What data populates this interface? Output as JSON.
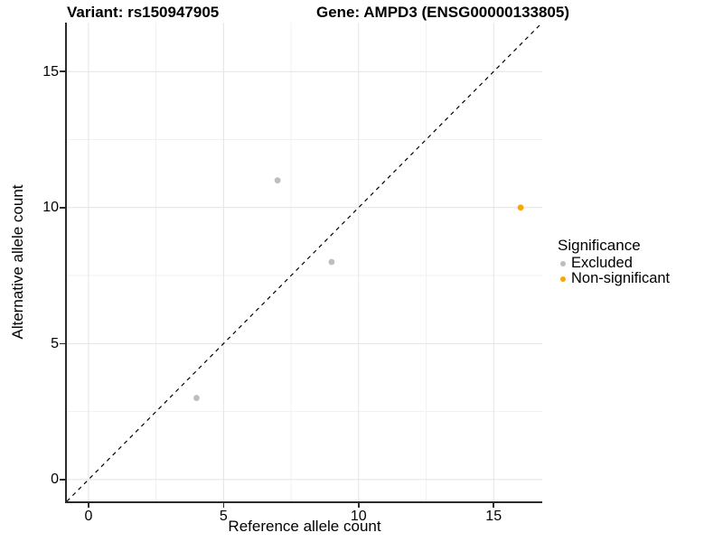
{
  "figure": {
    "titles": {
      "left": "Variant: rs150947905",
      "right": "Gene: AMPD3 (ENSG00000133805)"
    }
  },
  "axes": {
    "x": {
      "label": "Reference allele count",
      "tick_values": [
        0,
        5,
        10,
        15
      ],
      "range": [
        -0.8,
        16.8
      ]
    },
    "y": {
      "label": "Alternative allele count",
      "tick_values": [
        0,
        5,
        10,
        15
      ],
      "range": [
        -0.8,
        16.8
      ]
    }
  },
  "legend": {
    "title": "Significance",
    "items": [
      {
        "label": "Excluded",
        "color": "#BEBEBE"
      },
      {
        "label": "Non-significant",
        "color": "#FFA500"
      }
    ]
  },
  "colors": {
    "grid_major": "#E4E4E4",
    "grid_minor": "#F1F1F1",
    "axis_line": "#2B2B2B",
    "reference_line": "#000000"
  },
  "chart_data": {
    "type": "scatter",
    "title": "Variant: rs150947905 / Gene: AMPD3 (ENSG00000133805)",
    "xlabel": "Reference allele count",
    "ylabel": "Alternative allele count",
    "xlim": [
      -0.8,
      16.8
    ],
    "ylim": [
      -0.8,
      16.8
    ],
    "grid": true,
    "legend_position": "right",
    "reference_line": {
      "type": "identity",
      "style": "dashed",
      "color": "#000000"
    },
    "series": [
      {
        "name": "Excluded",
        "color": "#BEBEBE",
        "points": [
          [
            4,
            3
          ],
          [
            7,
            11
          ],
          [
            9,
            8
          ]
        ]
      },
      {
        "name": "Non-significant",
        "color": "#FFA500",
        "points": [
          [
            16,
            10
          ]
        ]
      }
    ]
  }
}
